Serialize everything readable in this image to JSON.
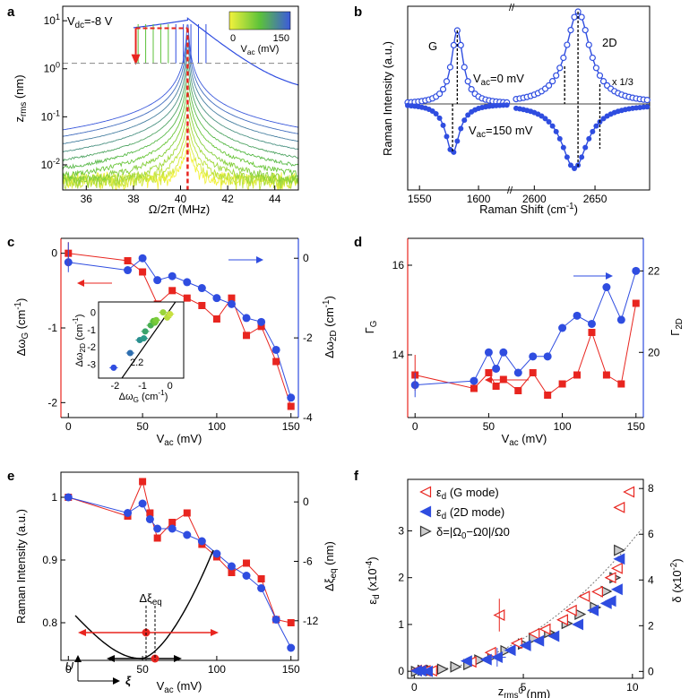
{
  "colors": {
    "red": "#e8251f",
    "blue": "#2f4de0",
    "gray": "#888888",
    "green": "#5cc23a",
    "yellow": "#f2f23c"
  },
  "chart_data": [
    {
      "panel": "a",
      "type": "line",
      "title": "",
      "annotation": "V",
      "annotation_sub": "dc",
      "annotation_val": "=-8 V",
      "xlabel": "Ω/2π (MHz)",
      "ylabel": "z",
      "ylabel_sub": "rms",
      "ylabel_unit": " (nm)",
      "xlim": [
        35,
        45
      ],
      "ylim_log": [
        0.003,
        20
      ],
      "xticks": [
        36,
        38,
        40,
        42,
        44
      ],
      "yticks": [
        {
          "v": 10,
          "t": "10",
          "e": "1"
        },
        {
          "v": 1,
          "t": "10",
          "e": "0"
        },
        {
          "v": 0.1,
          "t": "10",
          "e": "-1"
        },
        {
          "v": 0.01,
          "t": "10",
          "e": "-2"
        }
      ],
      "threshold_y": 1.3,
      "colorbar": {
        "label": "V",
        "label_sub": "ac",
        "label_unit": " (mV)",
        "min": 0,
        "max": 150,
        "min_label": "0",
        "max_label": "150"
      },
      "resonance_mhz": 40.3,
      "sweep_curves": 12
    },
    {
      "panel": "b",
      "type": "line",
      "xlabel": "Raman Shift (cm",
      "xlabel_sup": "-1",
      "xlabel_end": ")",
      "ylabel": "Raman Intensity (a.u.)",
      "xticks_left": [
        1550,
        1600
      ],
      "xticks_right": [
        2600,
        2650
      ],
      "peak_labels": [
        "G",
        "2D"
      ],
      "scale_label": "x 1/3",
      "curve_top": {
        "label": "V",
        "sub": "ac",
        "val": "=0 mV"
      },
      "curve_bottom": {
        "label": "V",
        "sub": "ac",
        "val": "=150 mV"
      }
    },
    {
      "panel": "c",
      "type": "line",
      "xlabel": "V",
      "xlabel_sub": "ac",
      "xlabel_unit": " (mV)",
      "ylabel_left": "Δω",
      "ylabel_left_sub": "G",
      "ylabel_left_unit": " (cm",
      "ylabel_right": "Δω",
      "ylabel_right_sub": "2D",
      "ylabel_right_unit": " (cm",
      "unit_sup": "-1",
      "unit_close": ")",
      "xlim": [
        -5,
        155
      ],
      "ylim_left": [
        -2.2,
        0.2
      ],
      "ylim_right": [
        -4,
        0.5
      ],
      "xticks": [
        0,
        50,
        100,
        150
      ],
      "yticks_left": [
        0,
        -1,
        -2
      ],
      "yticks_right": [
        0,
        -2,
        -4
      ],
      "x": [
        0,
        40,
        50,
        60,
        70,
        80,
        90,
        100,
        110,
        120,
        130,
        140,
        150
      ],
      "series": [
        {
          "name": "ΔωG",
          "axis": "left",
          "color": "red",
          "values": [
            0.0,
            -0.1,
            -0.25,
            -0.68,
            -0.5,
            -0.6,
            -0.7,
            -0.88,
            -0.6,
            -1.1,
            -0.98,
            -1.45,
            -2.05
          ]
        },
        {
          "name": "Δω2D",
          "axis": "right",
          "color": "blue",
          "values": [
            -0.1,
            -0.3,
            0.0,
            -0.55,
            -0.45,
            -0.6,
            -0.75,
            -1.0,
            -1.15,
            -1.5,
            -1.6,
            -2.3,
            -3.5
          ]
        }
      ],
      "inset": {
        "xlabel": "Δω",
        "xlabel_sub": "G",
        "xunit": " (cm",
        "ylabel": "Δω",
        "ylabel_sub": "2D",
        "yunit": " (cm",
        "unit_sup": "-1",
        "unit_close": ")",
        "slope_label": "2.2",
        "xticks": [
          -2,
          -1,
          0
        ],
        "yticks": [
          0,
          -1,
          -2,
          -3
        ],
        "xlim": [
          -2.6,
          0.5
        ],
        "ylim": [
          -3.8,
          0.6
        ],
        "points": [
          [
            -2.05,
            -3.2
          ],
          [
            -1.45,
            -2.35
          ],
          [
            -1.1,
            -1.6
          ],
          [
            -0.95,
            -1.5
          ],
          [
            -0.9,
            -1.1
          ],
          [
            -0.7,
            -0.75
          ],
          [
            -0.6,
            -0.5
          ],
          [
            -0.55,
            -0.6
          ],
          [
            -0.5,
            -0.45
          ],
          [
            -0.25,
            0.0
          ],
          [
            -0.1,
            -0.3
          ],
          [
            0.0,
            -0.1
          ]
        ]
      }
    },
    {
      "panel": "d",
      "type": "line",
      "xlabel": "V",
      "xlabel_sub": "ac",
      "xlabel_unit": " (mV)",
      "ylabel_left": "Γ",
      "ylabel_left_sub": "G",
      "ylabel_right": "Γ",
      "ylabel_right_sub": "2D",
      "xlim": [
        -5,
        155
      ],
      "ylim_left": [
        12.6,
        16.6
      ],
      "ylim_right": [
        18.4,
        22.8
      ],
      "xticks": [
        0,
        50,
        100,
        150
      ],
      "yticks_left": [
        14,
        16
      ],
      "yticks_right": [
        20,
        22
      ],
      "x": [
        0,
        40,
        50,
        55,
        60,
        70,
        80,
        90,
        100,
        110,
        120,
        130,
        140,
        150
      ],
      "series": [
        {
          "name": "ΓG",
          "axis": "left",
          "color": "red",
          "values": [
            13.55,
            13.25,
            13.6,
            13.3,
            13.45,
            13.2,
            13.6,
            13.1,
            13.35,
            13.55,
            14.5,
            13.55,
            13.35,
            15.15
          ]
        },
        {
          "name": "Γ2D",
          "axis": "right",
          "color": "blue",
          "values": [
            19.2,
            19.3,
            20.0,
            19.6,
            20.0,
            19.5,
            19.9,
            19.9,
            20.6,
            20.9,
            20.7,
            21.6,
            20.8,
            22.0
          ]
        }
      ]
    },
    {
      "panel": "e",
      "type": "line",
      "xlabel": "V",
      "xlabel_sub": "ac",
      "xlabel_unit": " (mV)",
      "ylabel_left": "Raman Intensity (a.u.)",
      "ylabel_right": "Δξ",
      "ylabel_right_sub": "eq",
      "ylabel_right_unit": " (nm)",
      "xlim": [
        -5,
        155
      ],
      "ylim_left": [
        0.74,
        1.04
      ],
      "ylim_right": [
        -16,
        3
      ],
      "xticks": [
        0,
        50,
        100,
        150
      ],
      "yticks_left": [
        0.8,
        0.9,
        1.0
      ],
      "yticks_right": [
        0,
        -6,
        -12
      ],
      "x": [
        0,
        40,
        50,
        55,
        60,
        70,
        80,
        90,
        100,
        110,
        120,
        130,
        140,
        150
      ],
      "series": [
        {
          "name": "intensity",
          "axis": "left",
          "color": "red",
          "values": [
            1.0,
            0.97,
            1.025,
            0.975,
            0.935,
            0.96,
            0.975,
            0.925,
            0.905,
            0.88,
            0.895,
            0.87,
            0.805,
            0.8
          ]
        },
        {
          "name": "xi",
          "axis": "left",
          "color": "blue",
          "values": [
            1.0,
            0.975,
            0.99,
            0.965,
            0.95,
            0.95,
            0.94,
            0.93,
            0.91,
            0.89,
            0.875,
            0.855,
            0.805,
            0.76
          ]
        }
      ],
      "potential": {
        "U": "U",
        "xi": "ξ",
        "delta": "Δξ",
        "delta_sub": "eq"
      }
    },
    {
      "panel": "f",
      "type": "scatter",
      "xlabel": "z",
      "xlabel_sub": "rms",
      "xlabel_sup": "0",
      "xlabel_unit": " (nm)",
      "ylabel_left": "ε",
      "ylabel_left_sub": "d",
      "ylabel_left_unit": " (x10",
      "ylabel_left_sup": "-4",
      "ylabel_left_close": ")",
      "ylabel_right": "δ",
      "ylabel_right_unit": " (x10",
      "ylabel_right_sup": "-2",
      "ylabel_right_close": ")",
      "xlim": [
        -0.3,
        10.5
      ],
      "ylim_left": [
        -0.15,
        4.1
      ],
      "ylim_right": [
        -0.3,
        8.4
      ],
      "xticks": [
        0,
        5,
        10
      ],
      "yticks_left": [
        0,
        1,
        2,
        3
      ],
      "yticks_right": [
        0,
        2,
        4,
        6,
        8
      ],
      "legend": [
        {
          "label": "ε",
          "sub": "d",
          "rest": " (G mode)",
          "color": "red"
        },
        {
          "label": "ε",
          "sub": "d",
          "rest": " (2D mode)",
          "color": "blue"
        },
        {
          "label": "δ=|Ω",
          "sub": "0",
          "rest": "−Ω0|/Ω0",
          "color": "gray"
        }
      ],
      "series": [
        {
          "name": "G mode",
          "color": "red",
          "x": [
            0.1,
            0.3,
            0.5,
            0.8,
            2.6,
            3.5,
            3.9,
            4.7,
            5.5,
            6.0,
            6.8,
            7.2,
            7.8,
            8.4,
            9.0,
            9.3,
            9.4
          ],
          "y": [
            0.02,
            0.02,
            0.01,
            0.01,
            0.2,
            0.4,
            1.2,
            0.6,
            0.8,
            0.9,
            1.1,
            1.3,
            1.6,
            1.7,
            2.0,
            2.2,
            3.5
          ]
        },
        {
          "name": "2D mode",
          "color": "blue",
          "x": [
            0.1,
            0.3,
            0.6,
            2.4,
            3.3,
            3.8,
            4.4,
            5.1,
            5.7,
            6.4,
            7.5,
            8.2,
            8.8,
            9.0,
            9.3,
            9.4
          ],
          "y": [
            0.01,
            0.01,
            0.0,
            0.22,
            0.25,
            0.3,
            0.45,
            0.55,
            0.65,
            0.75,
            1.0,
            1.3,
            1.45,
            1.5,
            1.75,
            2.4
          ]
        },
        {
          "name": "delta",
          "color": "gray",
          "axis": "right",
          "x": [
            0.1,
            0.4,
            0.8,
            1.3,
            1.9,
            2.5,
            3.0,
            3.6,
            4.2,
            5.0,
            5.5,
            6.2,
            7.0,
            7.6,
            8.3,
            8.8,
            9.2,
            9.4
          ],
          "y": [
            0.0,
            0.05,
            0.05,
            0.1,
            0.2,
            0.3,
            0.5,
            0.65,
            0.9,
            1.2,
            1.45,
            1.7,
            2.1,
            2.5,
            2.8,
            3.5,
            4.1,
            5.3
          ]
        }
      ]
    }
  ]
}
